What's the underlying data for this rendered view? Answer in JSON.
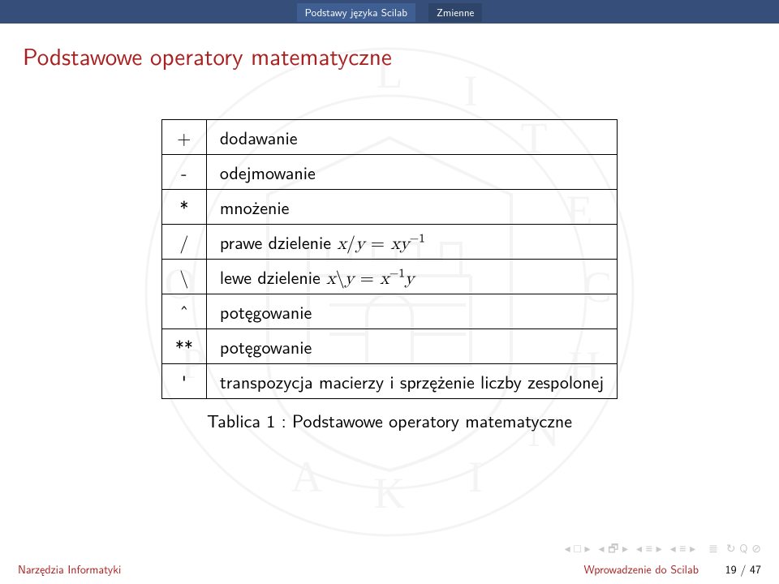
{
  "colors": {
    "accent": "#aa1f1f",
    "header_bg": "#354f7a",
    "header_crumb_active_bg": "#3f5f92",
    "header_crumb_bg": "#2e4569",
    "text": "#1a1a1a",
    "watermark": "#7a7a7a",
    "nav_icon": "#c8c8c8"
  },
  "header": {
    "crumbs": [
      {
        "label": "Podstawy języka Scilab",
        "active": true
      },
      {
        "label": "Zmienne",
        "active": false
      }
    ]
  },
  "title": "Podstawowe operatory matematyczne",
  "table": {
    "rows": [
      {
        "op": "+",
        "desc_html": "dodawanie"
      },
      {
        "op": "-",
        "desc_html": "odejmowanie"
      },
      {
        "op": "*",
        "desc_html": "mnożenie"
      },
      {
        "op": "/",
        "desc_html": "prawe dzielenie <span class=\"math\">x</span>/<span class=\"math\">y</span> = <span class=\"math\">xy</span><sup>−1</sup>"
      },
      {
        "op": "\\",
        "desc_html": "lewe dzielenie <span class=\"math\">x</span>\\<span class=\"math\">y</span> = <span class=\"math\">x</span><sup>−1</sup><span class=\"math\">y</span>"
      },
      {
        "op": "ˆ",
        "desc_html": "potęgowanie"
      },
      {
        "op": "**",
        "desc_html": "potęgowanie"
      },
      {
        "op": "'",
        "desc_html": "transpozycja macierzy i sprzężenie liczby zespolonej"
      }
    ]
  },
  "caption": {
    "label": "Tablica 1 :",
    "text": "Podstawowe operatory matematyczne"
  },
  "footer": {
    "left": "Narzędzia Informatyki",
    "center": "Wprowadzenie do Scilab",
    "page_current": "19",
    "page_sep": " / ",
    "page_total": "47"
  },
  "layout": {
    "table_fontsize": 22,
    "title_fontsize": 29,
    "footer_fontsize": 14,
    "cell_padding_v": 5,
    "cell_padding_h": 16
  }
}
